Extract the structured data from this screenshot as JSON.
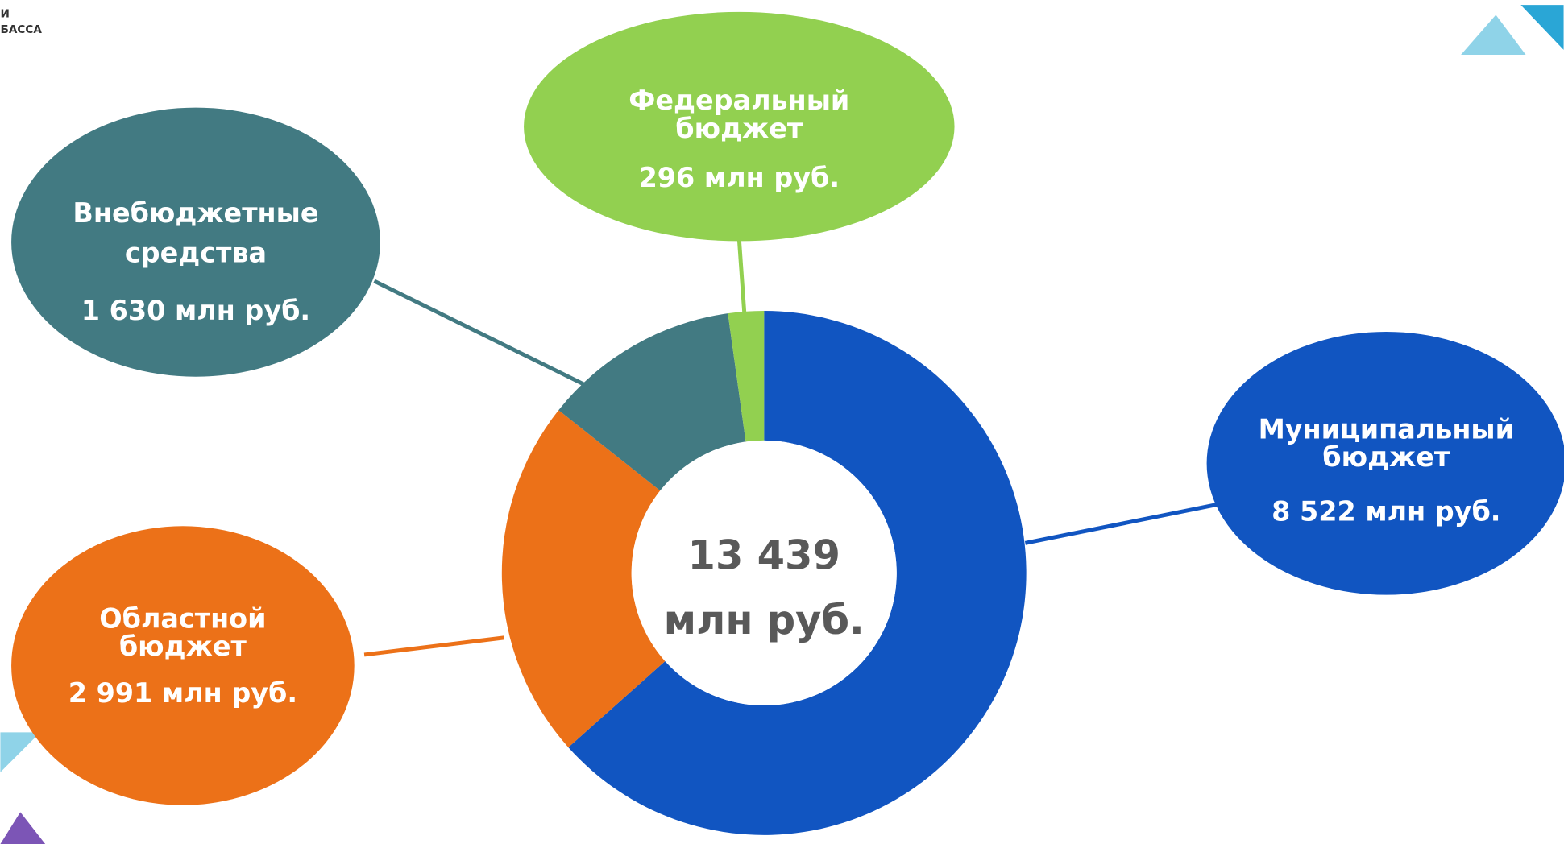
{
  "logo_text": [
    "И",
    "БАССА"
  ],
  "chart_data": {
    "type": "donut",
    "categories": [
      "Муниципальный бюджет",
      "Областной бюджет",
      "Внебюджетные средства",
      "Федеральный бюджет"
    ],
    "values": [
      8522,
      2991,
      1630,
      296
    ],
    "value_labels": [
      "8 522 млн руб.",
      "2 991 млн руб.",
      "1 630 млн руб.",
      "296 млн руб."
    ],
    "colors": [
      "#1155c1",
      "#ec7118",
      "#427a82",
      "#92d050"
    ],
    "center_text": [
      "13 439",
      "млн руб."
    ]
  }
}
